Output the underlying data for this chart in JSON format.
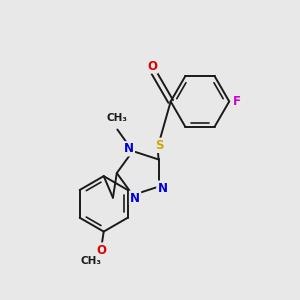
{
  "bg_color": "#e8e8e8",
  "bond_color": "#1a1a1a",
  "bond_lw": 1.4,
  "inner_lw": 1.2,
  "atom_colors": {
    "O": "#dd0000",
    "N": "#0000dd",
    "S": "#ccaa00",
    "F": "#cc00cc",
    "C": "#1a1a1a"
  },
  "fs": 8.5,
  "fs_sub": 7.5
}
